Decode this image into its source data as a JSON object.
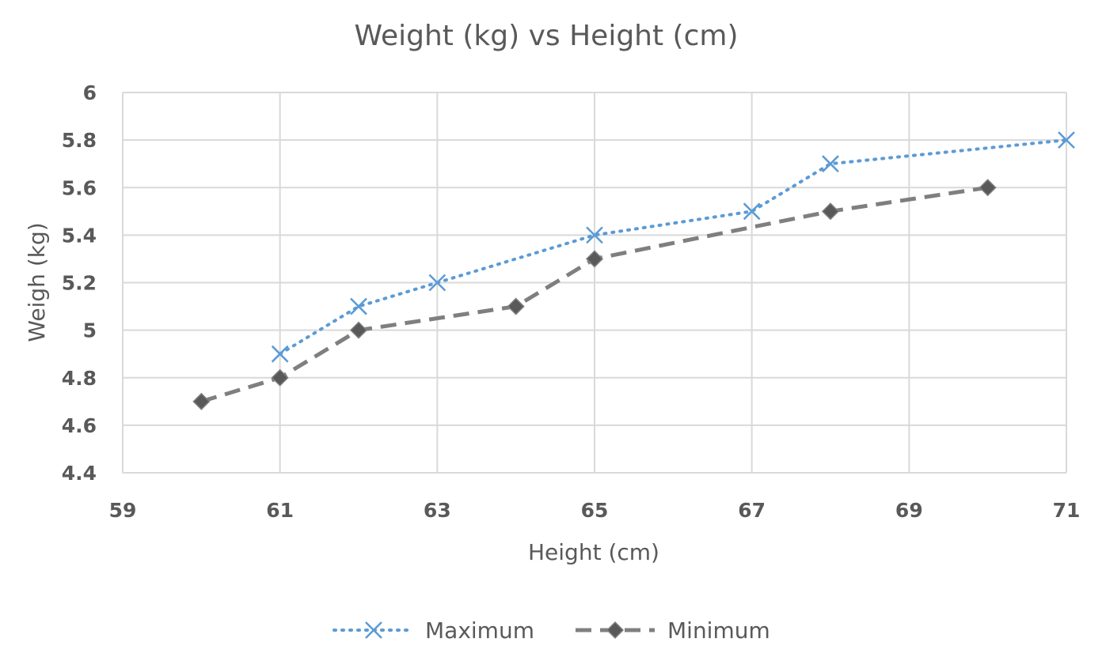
{
  "chart_data": {
    "type": "line",
    "title": "Weight (kg) vs Height (cm)",
    "xlabel": "Height (cm)",
    "ylabel": "Weigh (kg)",
    "xlim": [
      59,
      71
    ],
    "ylim": [
      4.4,
      6
    ],
    "xticks": [
      "59",
      "61",
      "63",
      "65",
      "67",
      "69",
      "71"
    ],
    "yticks": [
      "4.4",
      "4.6",
      "4.8",
      "5",
      "5.2",
      "5.4",
      "5.6",
      "5.8",
      "6"
    ],
    "grid": true,
    "legend_position": "bottom",
    "series": [
      {
        "name": "Maximum",
        "color": "#5b9bd5",
        "line_style": "dotted",
        "marker": "x",
        "x": [
          61,
          62,
          63,
          65,
          67,
          68,
          71
        ],
        "y": [
          4.9,
          5.1,
          5.2,
          5.4,
          5.5,
          5.7,
          5.8
        ]
      },
      {
        "name": "Minimum",
        "color": "#7f7f7f",
        "line_style": "dashed",
        "marker": "diamond",
        "x": [
          60,
          61,
          62,
          64,
          65,
          68,
          70
        ],
        "y": [
          4.7,
          4.8,
          5.0,
          5.1,
          5.3,
          5.5,
          5.6
        ]
      }
    ]
  }
}
